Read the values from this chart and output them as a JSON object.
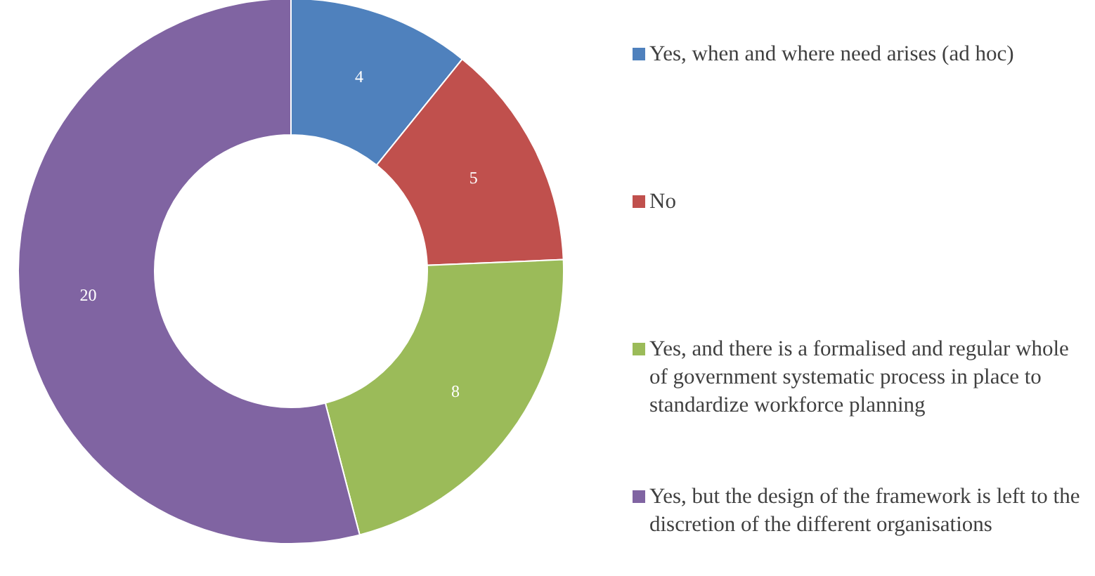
{
  "chart_data": {
    "type": "donut",
    "categories": [
      "Yes, when and where need arises (ad hoc)",
      "No",
      "Yes, and there is a formalised and regular whole of government systematic process in place to standardize workforce planning",
      "Yes, but the design of the framework is left to the discretion of the different organisations"
    ],
    "values": [
      4,
      5,
      8,
      20
    ],
    "colors": [
      "#4f81bd",
      "#c0504d",
      "#9bbb59",
      "#8064a2"
    ],
    "data_labels": true,
    "legend": "right"
  }
}
